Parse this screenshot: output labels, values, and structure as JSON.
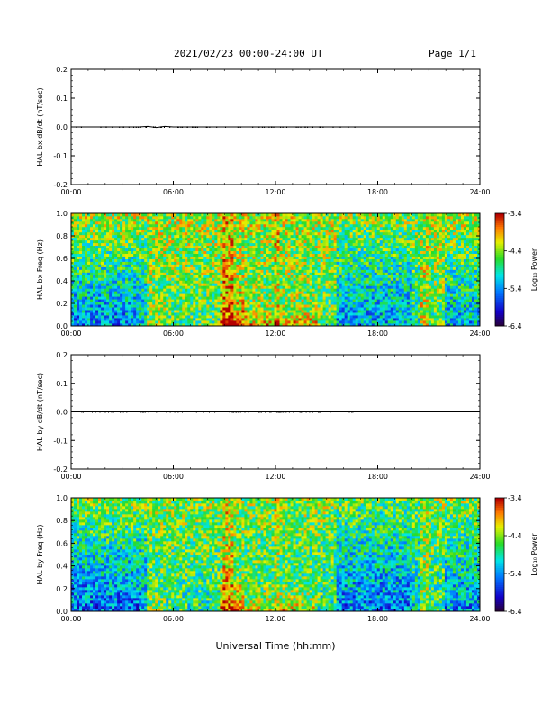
{
  "header": {
    "date_range": "2021/02/23  00:00-24:00 UT",
    "page": "Page 1/1"
  },
  "x_axis_label": "Universal Time (hh:mm)",
  "chart_data": [
    {
      "type": "line",
      "ylabel": "HAL bx dB/dt (nT/sec)",
      "xlim": [
        0,
        24
      ],
      "ylim": [
        -0.2,
        0.2
      ],
      "x_ticks": [
        "00:00",
        "06:00",
        "12:00",
        "18:00",
        "24:00"
      ],
      "y_ticks": [
        "-0.2",
        "-0.1",
        "0.0",
        "0.1",
        "0.2"
      ],
      "series": [
        {
          "x": [
            0,
            2,
            4,
            4.5,
            5,
            5.5,
            6,
            8,
            10,
            12,
            14,
            16,
            17,
            18,
            20,
            24
          ],
          "y": [
            0,
            0,
            0,
            0.002,
            -0.002,
            0.002,
            0,
            0,
            0,
            0,
            0,
            0,
            0,
            0,
            0,
            0
          ]
        }
      ]
    },
    {
      "type": "heatmap",
      "ylabel": "HAL bx Freq (Hz)",
      "xlim": [
        0,
        24
      ],
      "ylim": [
        0,
        1.0
      ],
      "x_ticks": [
        "00:00",
        "06:00",
        "12:00",
        "18:00",
        "24:00"
      ],
      "y_ticks": [
        "0.0",
        "0.2",
        "0.4",
        "0.6",
        "0.8",
        "1.0"
      ],
      "colorbar": {
        "label": "Log₁₀ Power",
        "min": -6.4,
        "max": -3.4,
        "ticks": [
          "-3.4",
          "-4.4",
          "-5.4",
          "-6.4"
        ]
      }
    },
    {
      "type": "line",
      "ylabel": "HAL by dB/dt (nT/sec)",
      "xlim": [
        0,
        24
      ],
      "ylim": [
        -0.2,
        0.2
      ],
      "x_ticks": [
        "00:00",
        "06:00",
        "12:00",
        "18:00",
        "24:00"
      ],
      "y_ticks": [
        "-0.2",
        "-0.1",
        "0.0",
        "0.1",
        "0.2"
      ],
      "series": [
        {
          "x": [
            0,
            2,
            4,
            6,
            8,
            10,
            12,
            14,
            16,
            18,
            24
          ],
          "y": [
            0,
            0,
            0,
            0,
            0,
            0,
            0,
            0,
            0,
            0,
            0
          ]
        }
      ]
    },
    {
      "type": "heatmap",
      "ylabel": "HAL by Freq (Hz)",
      "xlim": [
        0,
        24
      ],
      "ylim": [
        0,
        1.0
      ],
      "x_ticks": [
        "00:00",
        "06:00",
        "12:00",
        "18:00",
        "24:00"
      ],
      "y_ticks": [
        "0.0",
        "0.2",
        "0.4",
        "0.6",
        "0.8",
        "1.0"
      ],
      "colorbar": {
        "label": "Log₁₀ Power",
        "min": -6.4,
        "max": -3.4,
        "ticks": [
          "-3.4",
          "-4.4",
          "-5.4",
          "-6.4"
        ]
      }
    }
  ]
}
